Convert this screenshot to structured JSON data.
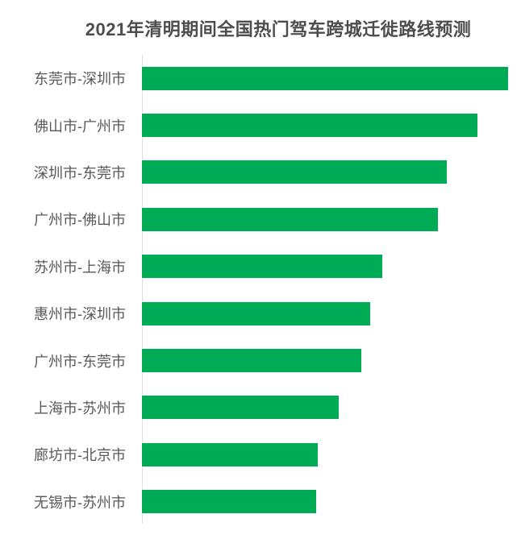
{
  "chart": {
    "title": "2021年清明期间全国热门驾车跨城迁徙路线预测",
    "colors": {
      "bar": "#00ab55",
      "title_text": "#4d4d4d",
      "label_text": "#595959",
      "axis_line": "#e0e0e0",
      "background": "#ffffff"
    }
  },
  "chart_data": {
    "type": "bar",
    "orientation": "horizontal",
    "title": "2021年清明期间全国热门驾车跨城迁徙路线预测",
    "categories": [
      "东莞市-深圳市",
      "佛山市-广州市",
      "深圳市-东莞市",
      "广州市-佛山市",
      "苏州市-上海市",
      "惠州市-深圳市",
      "广州市-东莞市",
      "上海市-苏州市",
      "廊坊市-北京市",
      "无锡市-苏州市"
    ],
    "values": [
      100,
      91.6,
      83.3,
      80.8,
      65.6,
      62.4,
      60.0,
      53.8,
      48.0,
      47.6
    ],
    "values_note": "estimated relative bar lengths as % of longest bar; chart shows no numeric axis labels, data labels, or gridlines",
    "xlabel": "",
    "ylabel": "",
    "legend": null,
    "grid": false,
    "axis": {
      "y_axis_line": true,
      "x_axis_ticks": false
    }
  }
}
